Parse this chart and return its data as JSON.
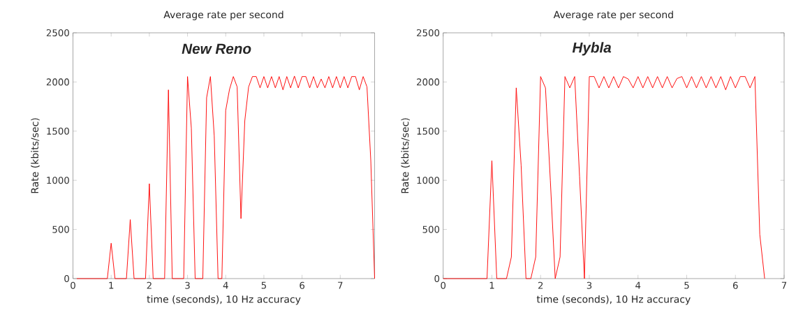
{
  "chart_data": [
    {
      "type": "line",
      "title": "Average rate per second",
      "xlabel": "time (seconds), 10 Hz accuracy",
      "ylabel": "Rate (kbits/sec)",
      "annotations": [
        "New Reno"
      ],
      "xlim": [
        0,
        7.9
      ],
      "ylim": [
        0,
        2500
      ],
      "xticks": [
        0,
        1,
        2,
        3,
        4,
        5,
        6,
        7
      ],
      "yticks": [
        0,
        500,
        1000,
        1500,
        2000,
        2500
      ],
      "series": [
        {
          "color": "#ff0000",
          "x": [
            0.1,
            0.2,
            0.3,
            0.4,
            0.5,
            0.6,
            0.7,
            0.8,
            0.9,
            1.0,
            1.1,
            1.2,
            1.3,
            1.4,
            1.5,
            1.6,
            1.7,
            1.8,
            1.9,
            2.0,
            2.1,
            2.2,
            2.3,
            2.4,
            2.5,
            2.6,
            2.7,
            2.8,
            2.9,
            3.0,
            3.1,
            3.2,
            3.3,
            3.4,
            3.5,
            3.6,
            3.7,
            3.8,
            3.9,
            4.0,
            4.1,
            4.2,
            4.3,
            4.4,
            4.5,
            4.6,
            4.7,
            4.8,
            4.9,
            5.0,
            5.1,
            5.2,
            5.3,
            5.4,
            5.5,
            5.6,
            5.7,
            5.8,
            5.9,
            6.0,
            6.1,
            6.2,
            6.3,
            6.4,
            6.5,
            6.6,
            6.7,
            6.8,
            6.9,
            7.0,
            7.1,
            7.2,
            7.3,
            7.4,
            7.5,
            7.6,
            7.7,
            7.8,
            7.9
          ],
          "values": [
            0,
            0,
            0,
            0,
            0,
            0,
            0,
            0,
            0,
            360,
            0,
            0,
            0,
            0,
            600,
            0,
            0,
            0,
            0,
            965,
            0,
            0,
            0,
            0,
            1920,
            0,
            0,
            0,
            0,
            2055,
            1530,
            0,
            0,
            0,
            1840,
            2055,
            1450,
            0,
            0,
            1710,
            1925,
            2055,
            1950,
            610,
            1605,
            1950,
            2055,
            2055,
            1940,
            2055,
            1940,
            2055,
            1940,
            2055,
            1920,
            2055,
            1940,
            2060,
            1940,
            2055,
            2055,
            1940,
            2055,
            1940,
            2030,
            1940,
            2055,
            1940,
            2055,
            1940,
            2055,
            1940,
            2055,
            2055,
            1920,
            2055,
            1950,
            1200,
            0
          ]
        }
      ]
    },
    {
      "type": "line",
      "title": "Average rate per second",
      "xlabel": "time (seconds), 10 Hz accuracy",
      "ylabel": "Rate (kbits/sec)",
      "annotations": [
        "Hybla"
      ],
      "xlim": [
        0,
        7
      ],
      "ylim": [
        0,
        2500
      ],
      "xticks": [
        0,
        1,
        2,
        3,
        4,
        5,
        6,
        7
      ],
      "yticks": [
        0,
        500,
        1000,
        1500,
        2000,
        2500
      ],
      "series": [
        {
          "color": "#ff0000",
          "x": [
            0.0,
            0.1,
            0.2,
            0.3,
            0.4,
            0.5,
            0.6,
            0.7,
            0.8,
            0.9,
            1.0,
            1.1,
            1.2,
            1.3,
            1.4,
            1.5,
            1.6,
            1.7,
            1.8,
            1.9,
            2.0,
            2.1,
            2.2,
            2.3,
            2.4,
            2.5,
            2.6,
            2.7,
            2.8,
            2.9,
            3.0,
            3.1,
            3.2,
            3.3,
            3.4,
            3.5,
            3.6,
            3.7,
            3.8,
            3.9,
            4.0,
            4.1,
            4.2,
            4.3,
            4.4,
            4.5,
            4.6,
            4.7,
            4.8,
            4.9,
            5.0,
            5.1,
            5.2,
            5.3,
            5.4,
            5.5,
            5.6,
            5.7,
            5.8,
            5.9,
            6.0,
            6.1,
            6.2,
            6.3,
            6.4,
            6.5,
            6.6
          ],
          "values": [
            0,
            0,
            0,
            0,
            0,
            0,
            0,
            0,
            0,
            0,
            1200,
            0,
            0,
            0,
            220,
            1940,
            1155,
            0,
            0,
            220,
            2055,
            1940,
            1000,
            0,
            220,
            2055,
            1940,
            2055,
            1040,
            0,
            2055,
            2055,
            1940,
            2055,
            1940,
            2055,
            1940,
            2055,
            2030,
            1940,
            2055,
            1940,
            2055,
            1940,
            2055,
            1940,
            2055,
            1940,
            2035,
            2055,
            1940,
            2055,
            1940,
            2055,
            1940,
            2055,
            1940,
            2055,
            1920,
            2055,
            1940,
            2055,
            2055,
            1940,
            2055,
            450,
            0
          ]
        }
      ]
    }
  ]
}
